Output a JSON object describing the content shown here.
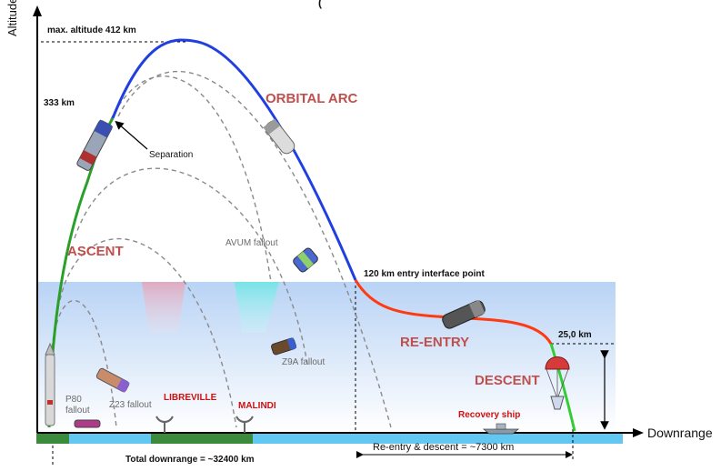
{
  "title_fragment": "(",
  "axes": {
    "y_label": "Altitude",
    "x_label": "Downrange"
  },
  "labels": {
    "max_altitude": "max. altitude 412 km",
    "separation_altitude": "333 km",
    "separation": "Separation",
    "entry_interface": "120 km entry interface point",
    "parachute_altitude": "25,0 km",
    "avum_fallout": "AVUM fallout",
    "z9a_fallout": "Z9A fallout",
    "z23_fallout": "Z23 fallout",
    "p80_fallout": "P80 fallout",
    "libreville": "LIBREVILLE",
    "malindi": "MALINDI",
    "recovery_ship": "Recovery ship",
    "total_downrange": "Total downrange = ~32400 km",
    "reentry_descent_range": "Re-entry & descent = ~7300 km"
  },
  "phases": {
    "ascent": "ASCENT",
    "orbital_arc": "ORBITAL ARC",
    "reentry": "RE-ENTRY",
    "descent": "DESCENT"
  },
  "colors": {
    "ascent": "#2aa02a",
    "orbital": "#1f3fe0",
    "reentry": "#ff3a10",
    "descent": "#33cc33",
    "fallout": "#8a8a8a",
    "phase_text": "#c0504d",
    "atmosphere": "#cfe3fb"
  },
  "icons": {
    "launcher": "rocket-icon",
    "vehicle": "spacecraft-icon",
    "parachute": "parachute-icon",
    "ship": "ship-icon",
    "antenna": "antenna-icon"
  }
}
